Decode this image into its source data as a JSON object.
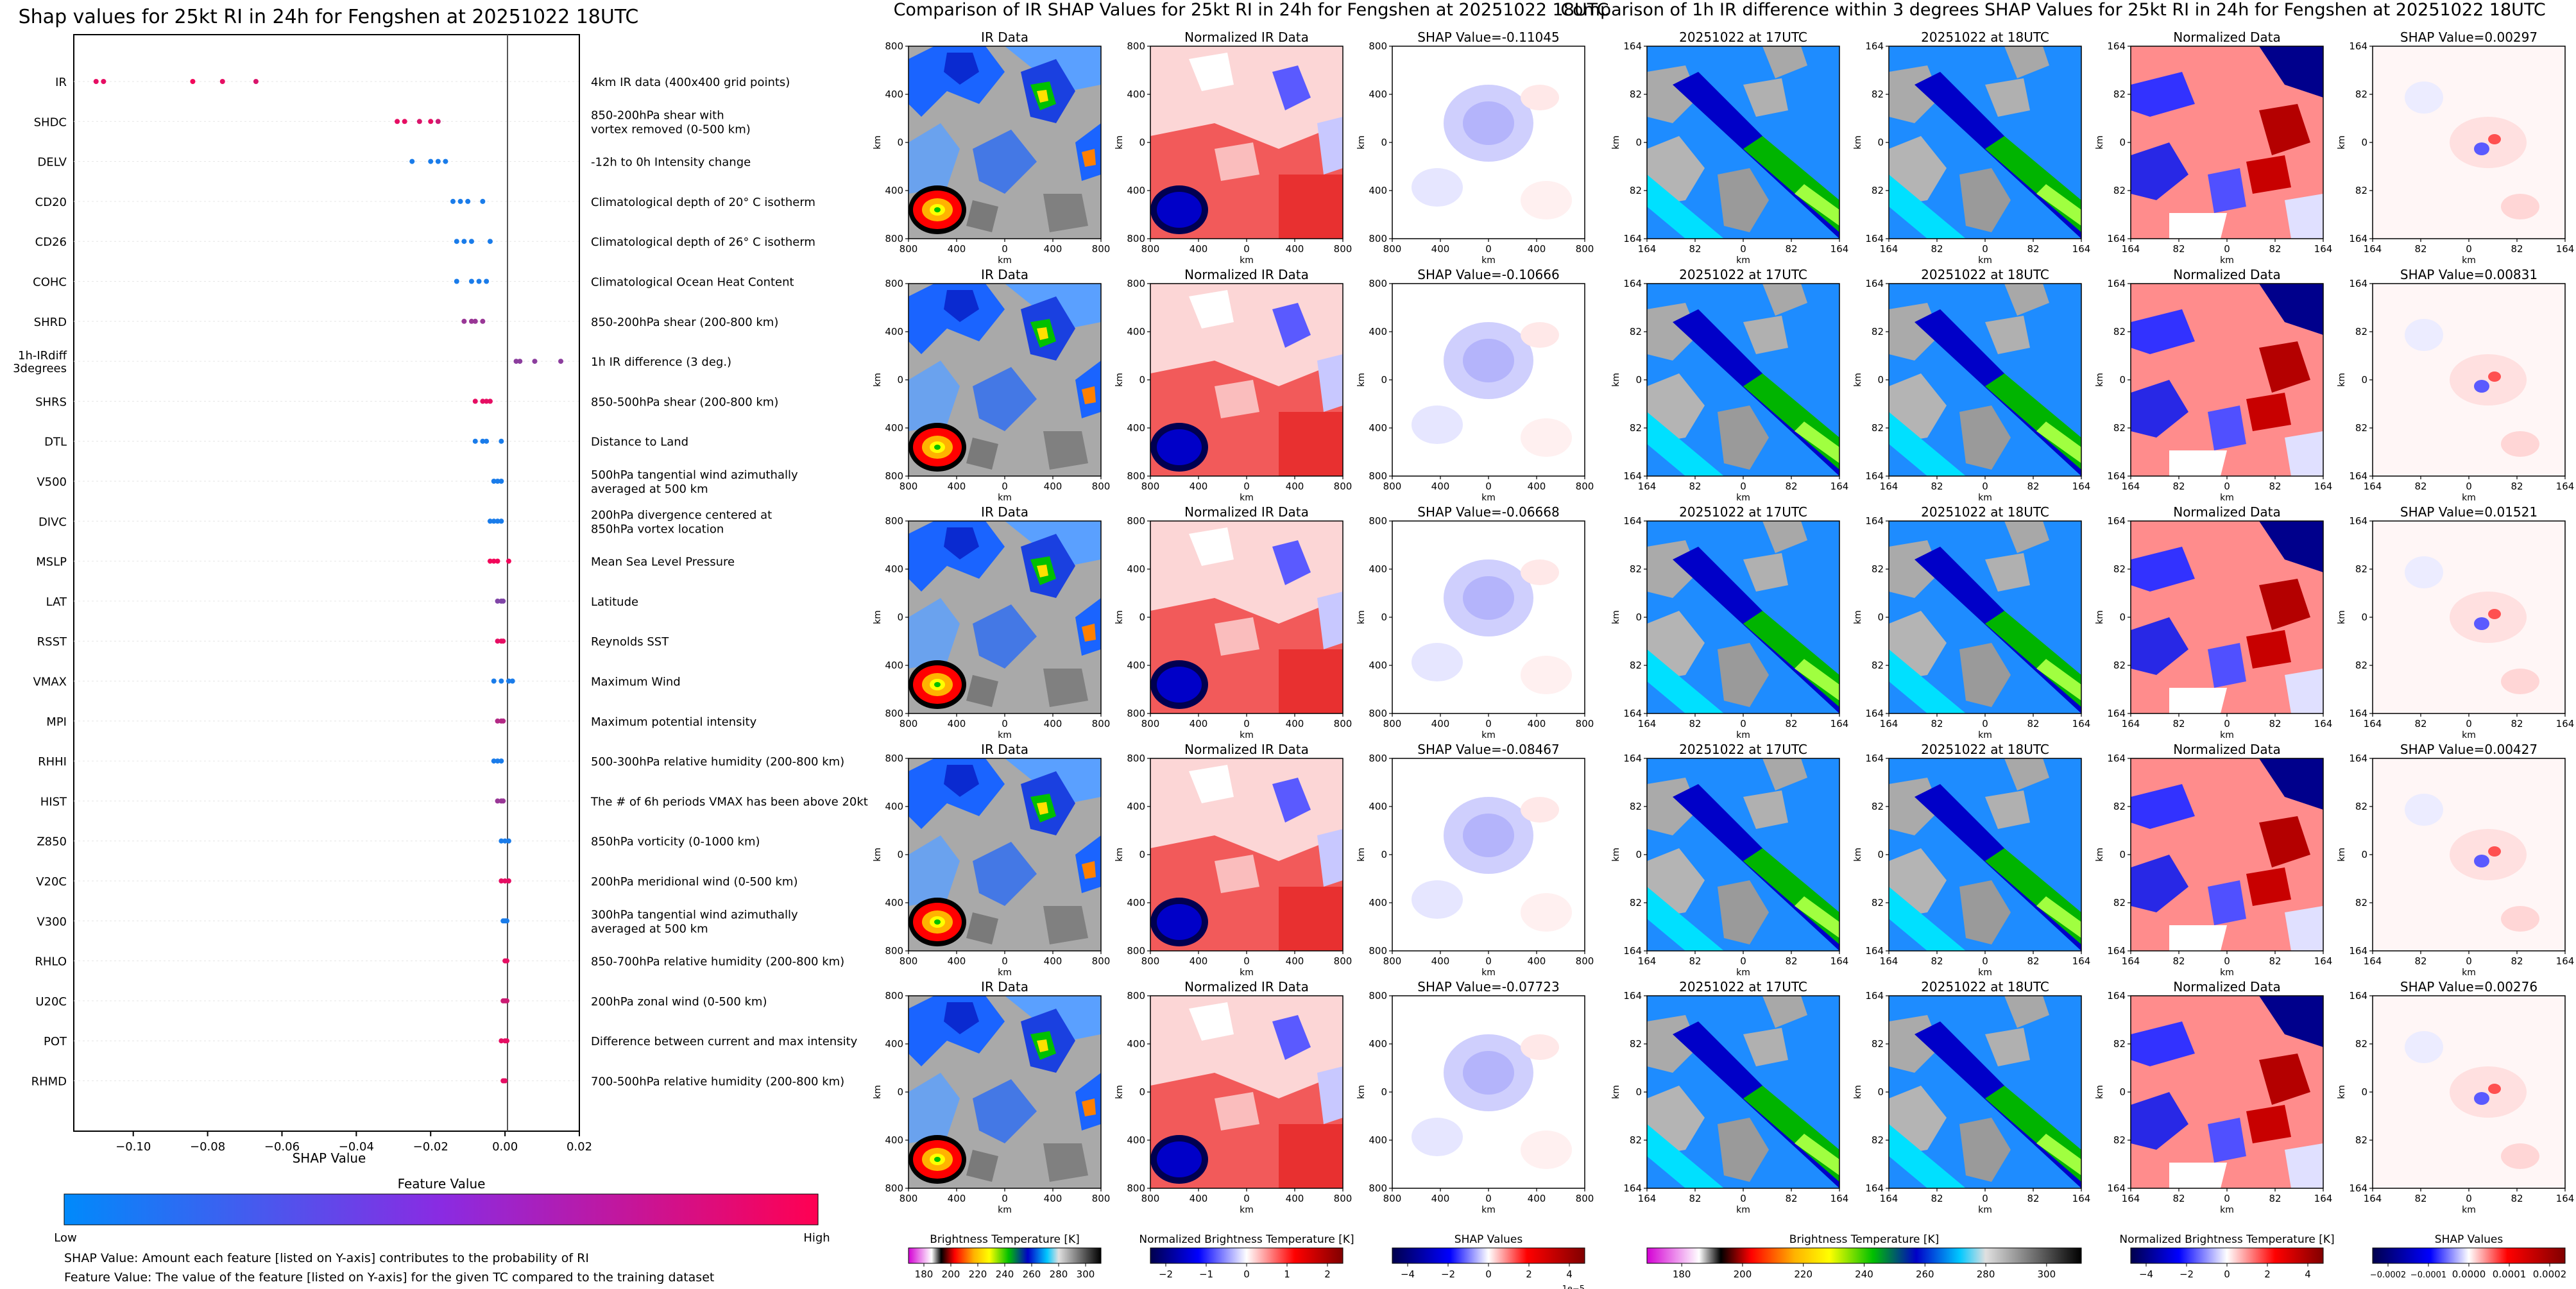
{
  "figure": {
    "shap_panel_title": "Shap values for 25kt RI in 24h for Fengshen at 20251022 18UTC",
    "ir_group_title": "Comparison of IR SHAP Values for 25kt RI in 24h for Fengshen at 20251022 18UTC",
    "diff_group_title": "Comparison of 1h IR difference within 3 degrees SHAP Values for 25kt RI in 24h for Fengshen at 20251022 18UTC"
  },
  "chart_data": [
    {
      "type": "scatter",
      "title": "Shap values for 25kt RI in 24h for Fengshen at 20251022 18UTC",
      "xlabel": "SHAP Value",
      "xlim": [
        -0.116,
        0.02
      ],
      "xticks": [
        -0.1,
        -0.08,
        -0.06,
        -0.04,
        -0.02,
        0.0,
        0.02
      ],
      "xtick_labels": [
        "−0.10",
        "−0.08",
        "−0.06",
        "−0.04",
        "−0.02",
        "0.00",
        "0.02"
      ],
      "colorbar": {
        "label": "Feature Value",
        "low": "Low",
        "high": "High",
        "colors": [
          "#008afb",
          "#ff0052"
        ]
      },
      "notes": [
        "SHAP Value: Amount each feature [listed on Y-axis] contributes to the probability of RI",
        "Feature Value: The value of the feature [listed on Y-axis] for the given TC compared to the training dataset"
      ],
      "features": [
        {
          "name": "IR",
          "desc": [
            "4km IR data (400x400 grid points)"
          ],
          "points": [
            [
              -0.11,
              0.9
            ],
            [
              -0.108,
              0.9
            ],
            [
              -0.084,
              0.95
            ],
            [
              -0.076,
              0.9
            ],
            [
              -0.067,
              0.85
            ]
          ]
        },
        {
          "name": "SHDC",
          "desc": [
            "850-200hPa shear with",
            "vortex removed (0-500 km)"
          ],
          "points": [
            [
              -0.029,
              0.9
            ],
            [
              -0.027,
              0.9
            ],
            [
              -0.023,
              0.85
            ],
            [
              -0.02,
              0.9
            ],
            [
              -0.018,
              0.8
            ]
          ]
        },
        {
          "name": "DELV",
          "desc": [
            "-12h to 0h Intensity change"
          ],
          "points": [
            [
              -0.025,
              0.1
            ],
            [
              -0.02,
              0.1
            ],
            [
              -0.018,
              0.1
            ],
            [
              -0.016,
              0.1
            ]
          ]
        },
        {
          "name": "CD20",
          "desc": [
            "Climatological depth of 20° C isotherm"
          ],
          "points": [
            [
              -0.014,
              0.1
            ],
            [
              -0.012,
              0.1
            ],
            [
              -0.01,
              0.1
            ],
            [
              -0.006,
              0.1
            ]
          ]
        },
        {
          "name": "CD26",
          "desc": [
            "Climatological depth of 26° C isotherm"
          ],
          "points": [
            [
              -0.013,
              0.1
            ],
            [
              -0.011,
              0.1
            ],
            [
              -0.009,
              0.1
            ],
            [
              -0.004,
              0.1
            ]
          ]
        },
        {
          "name": "COHC",
          "desc": [
            "Climatological Ocean Heat Content"
          ],
          "points": [
            [
              -0.013,
              0.1
            ],
            [
              -0.009,
              0.1
            ],
            [
              -0.007,
              0.1
            ],
            [
              -0.005,
              0.1
            ]
          ]
        },
        {
          "name": "SHRD",
          "desc": [
            "850-200hPa shear (200-800 km)"
          ],
          "points": [
            [
              -0.011,
              0.6
            ],
            [
              -0.009,
              0.6
            ],
            [
              -0.008,
              0.6
            ],
            [
              -0.006,
              0.6
            ]
          ]
        },
        {
          "name": "1h-IRdiff\n3degrees",
          "desc": [
            "1h IR difference (3 deg.)"
          ],
          "points": [
            [
              0.003,
              0.55
            ],
            [
              0.004,
              0.55
            ],
            [
              0.008,
              0.55
            ],
            [
              0.015,
              0.55
            ]
          ]
        },
        {
          "name": "SHRS",
          "desc": [
            "850-500hPa shear (200-800 km)"
          ],
          "points": [
            [
              -0.008,
              0.9
            ],
            [
              -0.006,
              0.9
            ],
            [
              -0.005,
              0.9
            ],
            [
              -0.004,
              0.9
            ]
          ]
        },
        {
          "name": "DTL",
          "desc": [
            "Distance to Land"
          ],
          "points": [
            [
              -0.008,
              0.1
            ],
            [
              -0.006,
              0.1
            ],
            [
              -0.005,
              0.1
            ],
            [
              -0.001,
              0.1
            ]
          ]
        },
        {
          "name": "V500",
          "desc": [
            "500hPa tangential wind azimuthally",
            "averaged at 500 km"
          ],
          "points": [
            [
              -0.003,
              0.1
            ],
            [
              -0.002,
              0.1
            ],
            [
              -0.001,
              0.1
            ]
          ]
        },
        {
          "name": "DIVC",
          "desc": [
            "200hPa divergence centered at",
            "850hPa vortex location"
          ],
          "points": [
            [
              -0.004,
              0.1
            ],
            [
              -0.003,
              0.1
            ],
            [
              -0.002,
              0.1
            ],
            [
              -0.001,
              0.1
            ]
          ]
        },
        {
          "name": "MSLP",
          "desc": [
            "Mean Sea Level Pressure"
          ],
          "points": [
            [
              -0.004,
              0.95
            ],
            [
              -0.003,
              0.95
            ],
            [
              -0.002,
              0.95
            ],
            [
              0.001,
              0.95
            ]
          ]
        },
        {
          "name": "LAT",
          "desc": [
            "Latitude"
          ],
          "points": [
            [
              -0.002,
              0.5
            ],
            [
              -0.001,
              0.5
            ],
            [
              -0.0005,
              0.5
            ]
          ]
        },
        {
          "name": "RSST",
          "desc": [
            "Reynolds SST"
          ],
          "points": [
            [
              -0.002,
              0.9
            ],
            [
              -0.001,
              0.9
            ],
            [
              -0.0005,
              0.9
            ]
          ]
        },
        {
          "name": "VMAX",
          "desc": [
            "Maximum Wind"
          ],
          "points": [
            [
              -0.003,
              0.1
            ],
            [
              -0.001,
              0.1
            ],
            [
              0.001,
              0.1
            ],
            [
              0.002,
              0.1
            ]
          ]
        },
        {
          "name": "MPI",
          "desc": [
            "Maximum potential intensity"
          ],
          "points": [
            [
              -0.002,
              0.7
            ],
            [
              -0.001,
              0.7
            ],
            [
              -0.0005,
              0.7
            ]
          ]
        },
        {
          "name": "RHHI",
          "desc": [
            "500-300hPa relative humidity (200-800 km)"
          ],
          "points": [
            [
              -0.003,
              0.1
            ],
            [
              -0.002,
              0.1
            ],
            [
              -0.001,
              0.1
            ]
          ]
        },
        {
          "name": "HIST",
          "desc": [
            "The # of 6h periods VMAX has been above 20kt"
          ],
          "points": [
            [
              -0.002,
              0.6
            ],
            [
              -0.001,
              0.6
            ],
            [
              -0.0005,
              0.6
            ]
          ]
        },
        {
          "name": "Z850",
          "desc": [
            "850hPa vorticity (0-1000 km)"
          ],
          "points": [
            [
              -0.001,
              0.1
            ],
            [
              0.0,
              0.1
            ],
            [
              0.001,
              0.1
            ]
          ]
        },
        {
          "name": "V20C",
          "desc": [
            "200hPa meridional wind (0-500 km)"
          ],
          "points": [
            [
              -0.001,
              0.9
            ],
            [
              0.0,
              0.9
            ],
            [
              0.001,
              0.9
            ]
          ]
        },
        {
          "name": "V300",
          "desc": [
            "300hPa tangential wind azimuthally",
            "averaged at 500 km"
          ],
          "points": [
            [
              -0.0005,
              0.1
            ],
            [
              0.0,
              0.1
            ],
            [
              0.0005,
              0.1
            ]
          ]
        },
        {
          "name": "RHLO",
          "desc": [
            "850-700hPa relative humidity (200-800 km)"
          ],
          "points": [
            [
              0.0,
              0.9
            ],
            [
              0.0005,
              0.9
            ]
          ]
        },
        {
          "name": "U20C",
          "desc": [
            "200hPa zonal wind (0-500 km)"
          ],
          "points": [
            [
              -0.0005,
              0.8
            ],
            [
              0.0,
              0.8
            ],
            [
              0.0005,
              0.8
            ]
          ]
        },
        {
          "name": "POT",
          "desc": [
            "Difference between current and max intensity"
          ],
          "points": [
            [
              -0.001,
              0.9
            ],
            [
              0.0,
              0.9
            ],
            [
              0.0005,
              0.9
            ]
          ]
        },
        {
          "name": "RHMD",
          "desc": [
            "700-500hPa relative humidity (200-800 km)"
          ],
          "points": [
            [
              -0.0005,
              0.9
            ],
            [
              0.0,
              0.9
            ]
          ]
        }
      ]
    },
    {
      "type": "heatmap",
      "title": "Comparison of IR SHAP Values for 25kt RI in 24h for Fengshen at 20251022 18UTC",
      "xlabel": "km",
      "ylabel": "km",
      "xtick_labels": [
        "800",
        "400",
        "0",
        "400",
        "800"
      ],
      "ytick_labels": [
        "800",
        "400",
        "0",
        "400",
        "800"
      ],
      "panel_titles": [
        "IR Data",
        "Normalized IR Data"
      ],
      "shap_values": [
        -0.11045,
        -0.10666,
        -0.06668,
        -0.08467,
        -0.07723
      ],
      "shap_title_prefix": "SHAP Value=",
      "colorbars": [
        {
          "label": "Brightness Temperature [K]",
          "ticks": [
            "180",
            "200",
            "220",
            "240",
            "260",
            "280",
            "300"
          ]
        },
        {
          "label": "Normalized Brightness Temperature [K]",
          "ticks": [
            "−2",
            "−1",
            "0",
            "1",
            "2"
          ]
        },
        {
          "label": "SHAP Values",
          "ticks": [
            "−4",
            "−2",
            "0",
            "2",
            "4"
          ],
          "offset": "1e−5"
        }
      ]
    },
    {
      "type": "heatmap",
      "title": "Comparison of 1h IR difference within 3 degrees SHAP Values for 25kt RI in 24h for Fengshen at 20251022 18UTC",
      "xlabel": "km",
      "ylabel": "km",
      "xtick_labels": [
        "164",
        "82",
        "0",
        "82",
        "164"
      ],
      "ytick_labels": [
        "164",
        "82",
        "0",
        "82",
        "164"
      ],
      "panel_titles": [
        "20251022 at 17UTC",
        "20251022 at 18UTC",
        "Normalized Data"
      ],
      "shap_values": [
        0.00297,
        0.00831,
        0.01521,
        0.00427,
        0.00276
      ],
      "shap_title_prefix": "SHAP Value=",
      "colorbars": [
        {
          "label": "Brightness Temperature [K]",
          "ticks": [
            "180",
            "200",
            "220",
            "240",
            "260",
            "280",
            "300"
          ]
        },
        {
          "label": "Normalized Brightness Temperature [K]",
          "ticks": [
            "−4",
            "−2",
            "0",
            "2",
            "4"
          ]
        },
        {
          "label": "SHAP Values",
          "ticks": [
            "−0.0002",
            "−0.0001",
            "0.0000",
            "0.0001",
            "0.0002"
          ]
        }
      ]
    }
  ]
}
